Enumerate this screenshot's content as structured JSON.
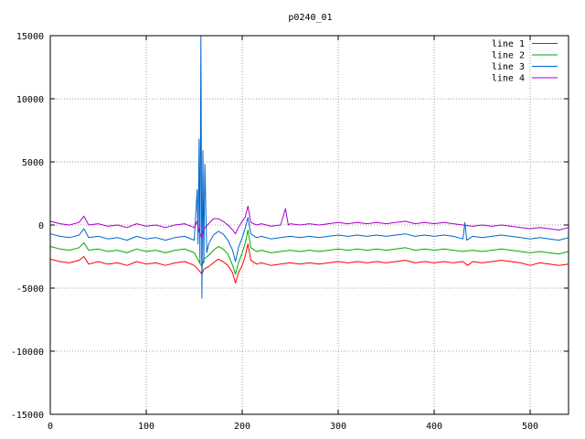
{
  "chart_data": {
    "type": "line",
    "title": "p0240_01",
    "xlabel": "",
    "ylabel": "",
    "xlim": [
      0,
      540
    ],
    "ylim": [
      -15000,
      15000
    ],
    "xticks": [
      0,
      100,
      200,
      300,
      400,
      500
    ],
    "yticks": [
      -15000,
      -10000,
      -5000,
      0,
      5000,
      10000,
      15000
    ],
    "grid": true,
    "legend_position": "top-right",
    "series": [
      {
        "name": "line 1",
        "color": "#ff0000",
        "points": [
          [
            0,
            -2700
          ],
          [
            10,
            -2900
          ],
          [
            20,
            -3000
          ],
          [
            30,
            -2800
          ],
          [
            35,
            -2500
          ],
          [
            40,
            -3100
          ],
          [
            50,
            -2900
          ],
          [
            60,
            -3100
          ],
          [
            70,
            -3000
          ],
          [
            80,
            -3200
          ],
          [
            90,
            -2900
          ],
          [
            100,
            -3100
          ],
          [
            110,
            -3000
          ],
          [
            120,
            -3200
          ],
          [
            130,
            -3000
          ],
          [
            140,
            -2900
          ],
          [
            150,
            -3200
          ],
          [
            155,
            -3600
          ],
          [
            158,
            -3900
          ],
          [
            160,
            -3500
          ],
          [
            165,
            -3300
          ],
          [
            170,
            -3000
          ],
          [
            175,
            -2700
          ],
          [
            180,
            -2900
          ],
          [
            185,
            -3200
          ],
          [
            190,
            -3800
          ],
          [
            193,
            -4600
          ],
          [
            196,
            -3800
          ],
          [
            200,
            -3200
          ],
          [
            203,
            -2500
          ],
          [
            206,
            -1500
          ],
          [
            209,
            -2800
          ],
          [
            215,
            -3100
          ],
          [
            220,
            -3000
          ],
          [
            230,
            -3200
          ],
          [
            240,
            -3100
          ],
          [
            250,
            -3000
          ],
          [
            260,
            -3100
          ],
          [
            270,
            -3000
          ],
          [
            280,
            -3100
          ],
          [
            290,
            -3000
          ],
          [
            300,
            -2900
          ],
          [
            310,
            -3000
          ],
          [
            320,
            -2900
          ],
          [
            330,
            -3000
          ],
          [
            340,
            -2900
          ],
          [
            350,
            -3000
          ],
          [
            360,
            -2900
          ],
          [
            370,
            -2800
          ],
          [
            380,
            -3000
          ],
          [
            390,
            -2900
          ],
          [
            400,
            -3000
          ],
          [
            410,
            -2900
          ],
          [
            420,
            -3000
          ],
          [
            430,
            -2900
          ],
          [
            435,
            -3200
          ],
          [
            440,
            -2900
          ],
          [
            450,
            -3000
          ],
          [
            460,
            -2900
          ],
          [
            470,
            -2800
          ],
          [
            480,
            -2900
          ],
          [
            490,
            -3000
          ],
          [
            500,
            -3200
          ],
          [
            510,
            -3000
          ],
          [
            520,
            -3100
          ],
          [
            530,
            -3200
          ],
          [
            540,
            -3100
          ]
        ]
      },
      {
        "name": "line 2",
        "color": "#00aa00",
        "points": [
          [
            0,
            -1700
          ],
          [
            10,
            -1900
          ],
          [
            20,
            -2000
          ],
          [
            30,
            -1800
          ],
          [
            35,
            -1400
          ],
          [
            40,
            -2000
          ],
          [
            50,
            -1900
          ],
          [
            60,
            -2100
          ],
          [
            70,
            -2000
          ],
          [
            80,
            -2200
          ],
          [
            90,
            -1900
          ],
          [
            100,
            -2100
          ],
          [
            110,
            -2000
          ],
          [
            120,
            -2200
          ],
          [
            130,
            -2000
          ],
          [
            140,
            -1900
          ],
          [
            150,
            -2200
          ],
          [
            155,
            -2900
          ],
          [
            158,
            -3300
          ],
          [
            160,
            -2700
          ],
          [
            165,
            -2400
          ],
          [
            170,
            -2000
          ],
          [
            175,
            -1700
          ],
          [
            180,
            -1900
          ],
          [
            185,
            -2300
          ],
          [
            190,
            -3200
          ],
          [
            193,
            -3900
          ],
          [
            196,
            -3000
          ],
          [
            200,
            -2200
          ],
          [
            203,
            -1500
          ],
          [
            206,
            -400
          ],
          [
            209,
            -1800
          ],
          [
            215,
            -2100
          ],
          [
            220,
            -2000
          ],
          [
            230,
            -2200
          ],
          [
            240,
            -2100
          ],
          [
            250,
            -2000
          ],
          [
            260,
            -2100
          ],
          [
            270,
            -2000
          ],
          [
            280,
            -2100
          ],
          [
            290,
            -2000
          ],
          [
            300,
            -1900
          ],
          [
            310,
            -2000
          ],
          [
            320,
            -1900
          ],
          [
            330,
            -2000
          ],
          [
            340,
            -1900
          ],
          [
            350,
            -2000
          ],
          [
            360,
            -1900
          ],
          [
            370,
            -1800
          ],
          [
            380,
            -2000
          ],
          [
            390,
            -1900
          ],
          [
            400,
            -2000
          ],
          [
            410,
            -1900
          ],
          [
            420,
            -2000
          ],
          [
            430,
            -2100
          ],
          [
            440,
            -2000
          ],
          [
            450,
            -2100
          ],
          [
            460,
            -2000
          ],
          [
            470,
            -1900
          ],
          [
            480,
            -2000
          ],
          [
            490,
            -2100
          ],
          [
            500,
            -2200
          ],
          [
            510,
            -2100
          ],
          [
            520,
            -2200
          ],
          [
            530,
            -2300
          ],
          [
            540,
            -2100
          ]
        ]
      },
      {
        "name": "line 3",
        "color": "#0066cc",
        "points": [
          [
            0,
            -700
          ],
          [
            10,
            -900
          ],
          [
            20,
            -1000
          ],
          [
            30,
            -800
          ],
          [
            35,
            -300
          ],
          [
            40,
            -1000
          ],
          [
            50,
            -900
          ],
          [
            60,
            -1100
          ],
          [
            70,
            -1000
          ],
          [
            80,
            -1200
          ],
          [
            90,
            -900
          ],
          [
            100,
            -1100
          ],
          [
            110,
            -1000
          ],
          [
            120,
            -1200
          ],
          [
            130,
            -1000
          ],
          [
            140,
            -900
          ],
          [
            150,
            -1200
          ],
          [
            153,
            2800
          ],
          [
            154,
            -1500
          ],
          [
            155,
            6800
          ],
          [
            156,
            -3000
          ],
          [
            157,
            15000
          ],
          [
            158,
            -5800
          ],
          [
            159,
            5900
          ],
          [
            160,
            -3000
          ],
          [
            161,
            4800
          ],
          [
            163,
            -2200
          ],
          [
            165,
            -1500
          ],
          [
            170,
            -800
          ],
          [
            175,
            -500
          ],
          [
            180,
            -700
          ],
          [
            185,
            -1200
          ],
          [
            190,
            -2000
          ],
          [
            193,
            -2900
          ],
          [
            196,
            -1800
          ],
          [
            200,
            -1000
          ],
          [
            203,
            -300
          ],
          [
            206,
            600
          ],
          [
            209,
            -700
          ],
          [
            215,
            -1000
          ],
          [
            220,
            -900
          ],
          [
            230,
            -1100
          ],
          [
            240,
            -1000
          ],
          [
            250,
            -900
          ],
          [
            260,
            -1000
          ],
          [
            270,
            -900
          ],
          [
            280,
            -1000
          ],
          [
            290,
            -900
          ],
          [
            300,
            -800
          ],
          [
            310,
            -900
          ],
          [
            320,
            -800
          ],
          [
            330,
            -900
          ],
          [
            340,
            -800
          ],
          [
            350,
            -900
          ],
          [
            360,
            -800
          ],
          [
            370,
            -700
          ],
          [
            380,
            -900
          ],
          [
            390,
            -800
          ],
          [
            400,
            -900
          ],
          [
            410,
            -800
          ],
          [
            420,
            -900
          ],
          [
            430,
            -1100
          ],
          [
            432,
            200
          ],
          [
            434,
            -1200
          ],
          [
            440,
            -900
          ],
          [
            450,
            -1000
          ],
          [
            460,
            -900
          ],
          [
            470,
            -800
          ],
          [
            480,
            -900
          ],
          [
            490,
            -1000
          ],
          [
            500,
            -1100
          ],
          [
            510,
            -1000
          ],
          [
            520,
            -1100
          ],
          [
            530,
            -1200
          ],
          [
            540,
            -1000
          ]
        ]
      },
      {
        "name": "line 4",
        "color": "#aa00cc",
        "points": [
          [
            0,
            300
          ],
          [
            10,
            100
          ],
          [
            20,
            0
          ],
          [
            30,
            200
          ],
          [
            35,
            700
          ],
          [
            40,
            0
          ],
          [
            50,
            100
          ],
          [
            60,
            -100
          ],
          [
            70,
            0
          ],
          [
            80,
            -200
          ],
          [
            90,
            100
          ],
          [
            100,
            -100
          ],
          [
            110,
            0
          ],
          [
            120,
            -200
          ],
          [
            130,
            0
          ],
          [
            140,
            100
          ],
          [
            150,
            -200
          ],
          [
            153,
            300
          ],
          [
            155,
            -500
          ],
          [
            158,
            -1000
          ],
          [
            160,
            -300
          ],
          [
            165,
            100
          ],
          [
            170,
            500
          ],
          [
            175,
            500
          ],
          [
            180,
            300
          ],
          [
            185,
            0
          ],
          [
            190,
            -400
          ],
          [
            193,
            -700
          ],
          [
            196,
            -200
          ],
          [
            200,
            300
          ],
          [
            203,
            600
          ],
          [
            206,
            1500
          ],
          [
            209,
            200
          ],
          [
            215,
            0
          ],
          [
            220,
            100
          ],
          [
            230,
            -100
          ],
          [
            240,
            0
          ],
          [
            245,
            1300
          ],
          [
            248,
            0
          ],
          [
            250,
            100
          ],
          [
            260,
            0
          ],
          [
            270,
            100
          ],
          [
            280,
            0
          ],
          [
            290,
            100
          ],
          [
            300,
            200
          ],
          [
            310,
            100
          ],
          [
            320,
            200
          ],
          [
            330,
            100
          ],
          [
            340,
            200
          ],
          [
            350,
            100
          ],
          [
            360,
            200
          ],
          [
            370,
            300
          ],
          [
            380,
            100
          ],
          [
            390,
            200
          ],
          [
            400,
            100
          ],
          [
            410,
            200
          ],
          [
            420,
            100
          ],
          [
            430,
            0
          ],
          [
            440,
            -100
          ],
          [
            450,
            0
          ],
          [
            460,
            -100
          ],
          [
            470,
            0
          ],
          [
            480,
            -100
          ],
          [
            490,
            -200
          ],
          [
            500,
            -300
          ],
          [
            510,
            -200
          ],
          [
            520,
            -300
          ],
          [
            530,
            -400
          ],
          [
            540,
            -200
          ]
        ]
      }
    ]
  }
}
